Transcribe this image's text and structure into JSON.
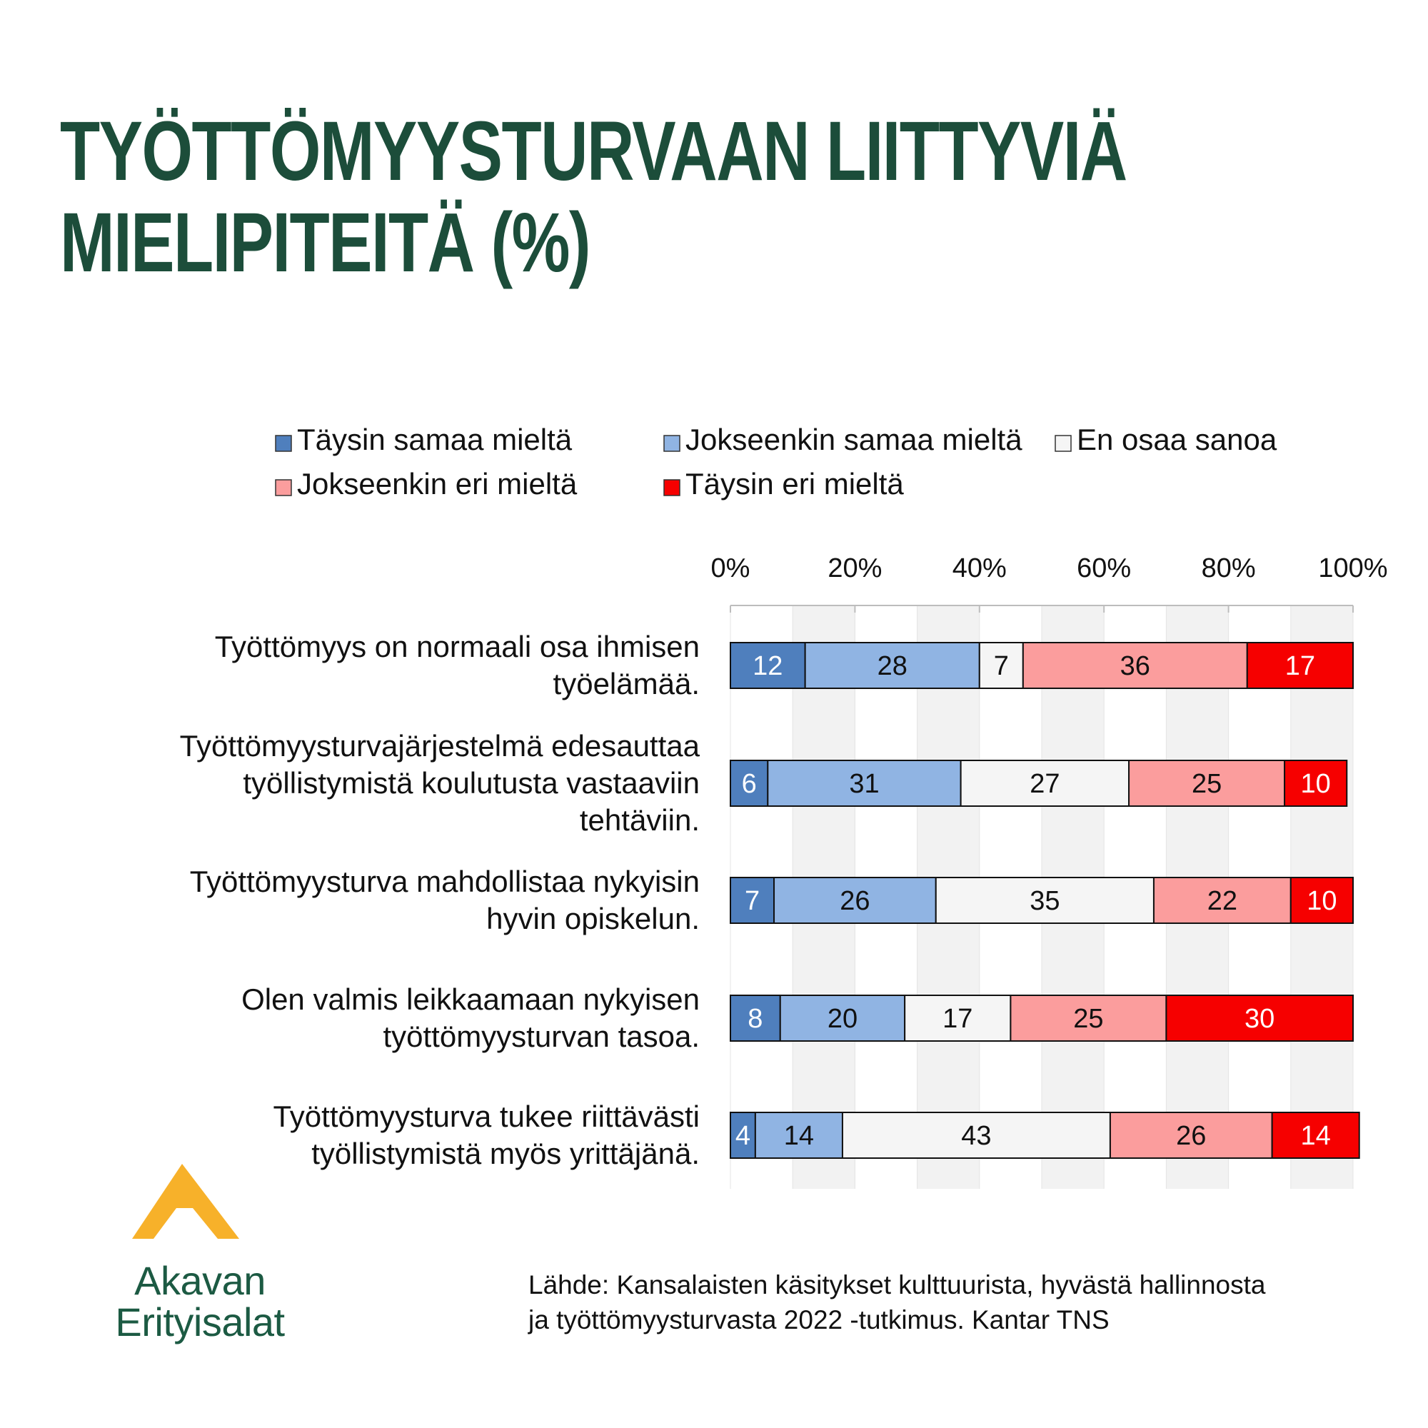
{
  "title": {
    "line1": "TYÖTTÖMYYSTURVAAN LIITTYVIÄ",
    "line2": "MIELIPITEITÄ (%)"
  },
  "source": {
    "line1": "Lähde: Kansalaisten käsitykset kulttuurista, hyvästä hallinnosta",
    "line2": "ja työttömyysturvasta 2022 -tutkimus. Kantar TNS"
  },
  "logo": {
    "line1": "Akavan",
    "line2": "Erityisalat",
    "mark_color": "#f7b12a"
  },
  "colors": {
    "title": "#1c4d3a",
    "grid_bg": "#f2f2f2"
  },
  "chart_data": {
    "type": "bar",
    "orientation": "horizontal",
    "stacked": true,
    "percent_stacked": true,
    "x_ticks": [
      "0%",
      "20%",
      "40%",
      "60%",
      "80%",
      "100%"
    ],
    "xlim": [
      0,
      100
    ],
    "legend_position": "top",
    "categories": [
      [
        "Työttömyys on normaali osa ihmisen",
        "työelämää."
      ],
      [
        "Työttömyysturvajärjestelmä edesauttaa",
        "työllistymistä koulutusta vastaaviin",
        "tehtäviin."
      ],
      [
        "Työttömyysturva mahdollistaa nykyisin",
        "hyvin opiskelun."
      ],
      [
        "Olen valmis leikkaamaan nykyisen",
        "työttömyysturvan tasoa."
      ],
      [
        "Työttömyysturva tukee riittävästi",
        "työllistymistä myös yrittäjänä."
      ]
    ],
    "series": [
      {
        "name": "Täysin samaa mieltä",
        "color": "#4f7fbd",
        "text_color": "#ffffff",
        "values": [
          12,
          6,
          7,
          8,
          4
        ]
      },
      {
        "name": "Jokseenkin samaa mieltä",
        "color": "#90b4e3",
        "text_color": "#111111",
        "values": [
          28,
          31,
          26,
          20,
          14
        ]
      },
      {
        "name": "En osaa sanoa",
        "color": "#f5f5f5",
        "text_color": "#111111",
        "values": [
          7,
          27,
          35,
          17,
          43
        ]
      },
      {
        "name": "Jokseenkin eri mieltä",
        "color": "#fb9d9d",
        "text_color": "#111111",
        "values": [
          36,
          25,
          22,
          25,
          26
        ]
      },
      {
        "name": "Täysin eri mieltä",
        "color": "#f60000",
        "text_color": "#ffffff",
        "values": [
          17,
          10,
          10,
          30,
          14
        ]
      }
    ]
  }
}
